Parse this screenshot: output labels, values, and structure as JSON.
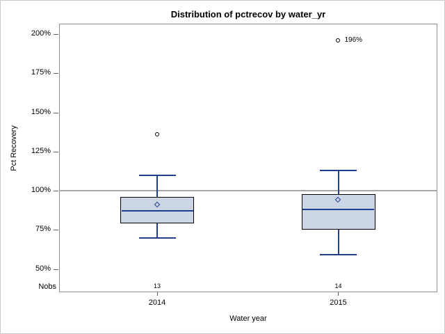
{
  "title": "Distribution of pctrecov by water_yr",
  "y_axis": {
    "label": "Pct Recovery",
    "ticks": [
      {
        "value": 200,
        "label": "200%"
      },
      {
        "value": 175,
        "label": "175%"
      },
      {
        "value": 150,
        "label": "150%"
      },
      {
        "value": 125,
        "label": "125%"
      },
      {
        "value": 100,
        "label": "100%"
      },
      {
        "value": 75,
        "label": "75%"
      },
      {
        "value": 50,
        "label": "50%"
      }
    ]
  },
  "x_axis": {
    "label": "Water year",
    "categories": [
      "2014",
      "2015"
    ]
  },
  "nobs_row": {
    "label": "Nobs",
    "values": [
      "13",
      "14"
    ]
  },
  "chart_data": {
    "type": "box",
    "title": "Distribution of pctrecov by water_yr",
    "xlabel": "Water year",
    "ylabel": "Pct Recovery",
    "ylim": [
      50,
      200
    ],
    "yticks": [
      50,
      75,
      100,
      125,
      150,
      175,
      200
    ],
    "ytick_unit": "%",
    "grid": false,
    "reference_line": 100,
    "categories": [
      "2014",
      "2015"
    ],
    "series": [
      {
        "category": "2014",
        "nobs": 13,
        "whisker_low": 70,
        "q1": 79,
        "median": 87,
        "mean": 91,
        "q3": 96,
        "whisker_high": 110,
        "outliers": [
          136
        ],
        "outlier_labels": [
          ""
        ]
      },
      {
        "category": "2015",
        "nobs": 14,
        "whisker_low": 59,
        "q1": 75,
        "median": 88,
        "mean": 94,
        "q3": 98,
        "whisker_high": 113,
        "outliers": [
          196
        ],
        "outlier_labels": [
          "196%"
        ]
      }
    ]
  },
  "colors": {
    "box_fill": "#ccd5e5",
    "box_frame": "#000000",
    "line_navy": "#1e3f8f",
    "outlier": "#000000",
    "reference_line": "#a8a8a8",
    "plot_frame": "#8f8f8f",
    "tick": "#5f5f5f",
    "text": "#000000"
  }
}
